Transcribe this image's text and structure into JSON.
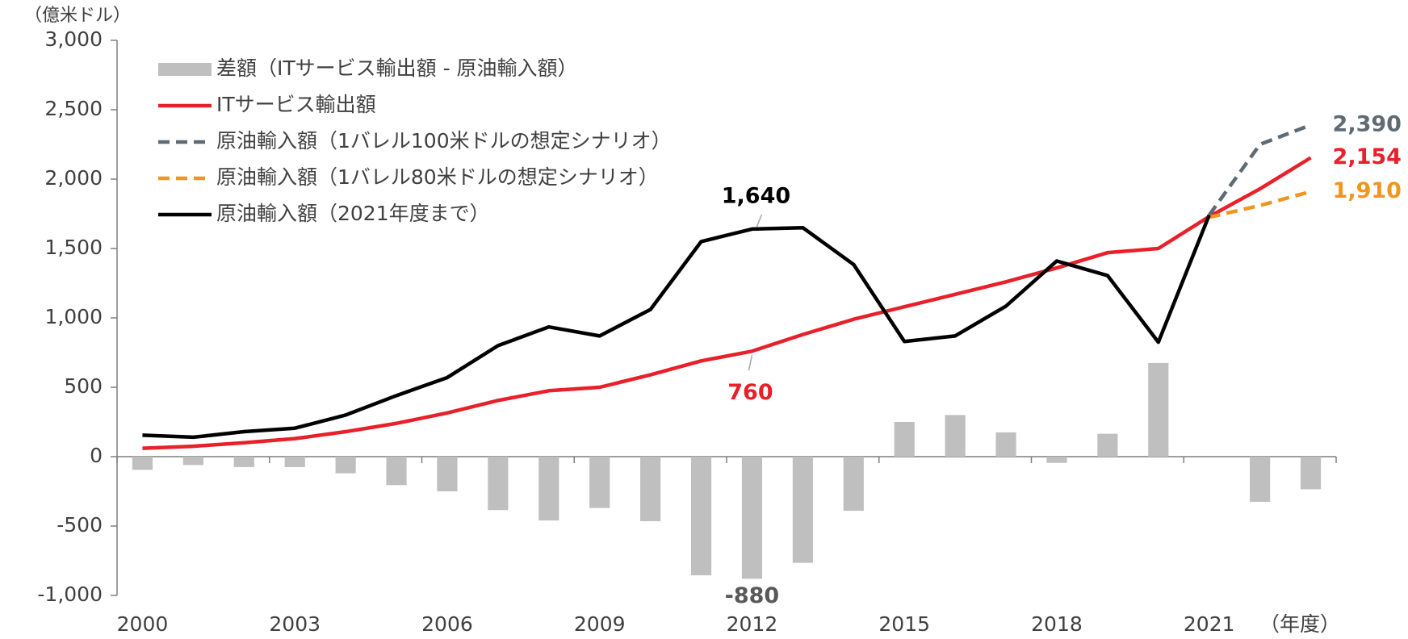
{
  "chart_data": {
    "type": "combo",
    "y_label": "（億米ドル）",
    "x_label": "（年度）",
    "categories": [
      "2000",
      null,
      null,
      "2003",
      null,
      null,
      "2006",
      null,
      null,
      "2009",
      null,
      null,
      "2012",
      null,
      null,
      "2015",
      null,
      null,
      "2018",
      null,
      null,
      "2021",
      null,
      null
    ],
    "ylim": [
      -1000,
      3000
    ],
    "yticks": [
      {
        "value": -1000,
        "label": "-1,000"
      },
      -500,
      0,
      500,
      {
        "value": 1000,
        "label": "1,000"
      },
      {
        "value": 1500,
        "label": "1,500"
      },
      {
        "value": 2000,
        "label": "2,000"
      },
      {
        "value": 2500,
        "label": "2,500"
      },
      {
        "value": 3000,
        "label": "3,000"
      }
    ],
    "legend": "upper left",
    "series": [
      {
        "name": "差額（ITサービス輸出額 - 原油輸入額）",
        "type": "bar",
        "color": "#bfbfbf",
        "label_color": "#595959",
        "values": [
          -95,
          -60,
          -75,
          -75,
          -120,
          -205,
          -250,
          -385,
          -460,
          -370,
          -465,
          -855,
          -880,
          -765,
          -390,
          250,
          300,
          175,
          -45,
          165,
          675,
          null,
          -325,
          -235
        ],
        "value_labels": [
          null,
          null,
          null,
          null,
          null,
          null,
          null,
          null,
          null,
          null,
          null,
          null,
          "-880",
          null,
          null,
          null,
          null,
          null,
          null,
          null,
          null,
          null,
          null,
          null
        ]
      },
      {
        "name": "ITサービス輸出額",
        "type": "line",
        "dashed": false,
        "color": "#e8202a",
        "label_color": "#e8202a",
        "values": [
          60,
          75,
          100,
          130,
          180,
          240,
          315,
          405,
          475,
          500,
          590,
          690,
          760,
          880,
          990,
          1080,
          1170,
          1260,
          1360,
          1470,
          1500,
          1730,
          1930,
          2154
        ],
        "value_labels": [
          null,
          null,
          null,
          null,
          null,
          null,
          null,
          null,
          null,
          null,
          null,
          null,
          "760",
          null,
          null,
          null,
          null,
          null,
          null,
          null,
          null,
          null,
          null,
          "2,154"
        ]
      },
      {
        "name": "原油輸入額（1バレル100米ドルの想定シナリオ）",
        "type": "line",
        "dashed": true,
        "color": "#5f6b73",
        "label_color": "#5f6b73",
        "values": [
          null,
          null,
          null,
          null,
          null,
          null,
          null,
          null,
          null,
          null,
          null,
          null,
          null,
          null,
          null,
          null,
          null,
          null,
          null,
          null,
          null,
          1740,
          2250,
          2390
        ],
        "value_labels": [
          null,
          null,
          null,
          null,
          null,
          null,
          null,
          null,
          null,
          null,
          null,
          null,
          null,
          null,
          null,
          null,
          null,
          null,
          null,
          null,
          null,
          null,
          null,
          "2,390"
        ]
      },
      {
        "name": "原油輸入額（1バレル80米ドルの想定シナリオ）",
        "type": "line",
        "dashed": true,
        "color": "#f0951f",
        "label_color": "#f0951f",
        "values": [
          null,
          null,
          null,
          null,
          null,
          null,
          null,
          null,
          null,
          null,
          null,
          null,
          null,
          null,
          null,
          null,
          null,
          null,
          null,
          null,
          null,
          1725,
          1810,
          1910
        ],
        "value_labels": [
          null,
          null,
          null,
          null,
          null,
          null,
          null,
          null,
          null,
          null,
          null,
          null,
          null,
          null,
          null,
          null,
          null,
          null,
          null,
          null,
          null,
          null,
          null,
          "1,910"
        ]
      },
      {
        "name": "原油輸入額（2021年度まで）",
        "type": "line",
        "dashed": false,
        "color": "#000000",
        "label_color": "#000000",
        "values": [
          155,
          140,
          180,
          205,
          300,
          440,
          570,
          800,
          935,
          870,
          1060,
          1550,
          1640,
          1650,
          1385,
          830,
          870,
          1085,
          1410,
          1305,
          825,
          1740,
          null,
          null
        ],
        "value_labels": [
          null,
          null,
          null,
          null,
          null,
          null,
          null,
          null,
          null,
          null,
          null,
          null,
          "1,640",
          null,
          null,
          null,
          null,
          null,
          null,
          null,
          null,
          null,
          null,
          null
        ]
      }
    ]
  }
}
